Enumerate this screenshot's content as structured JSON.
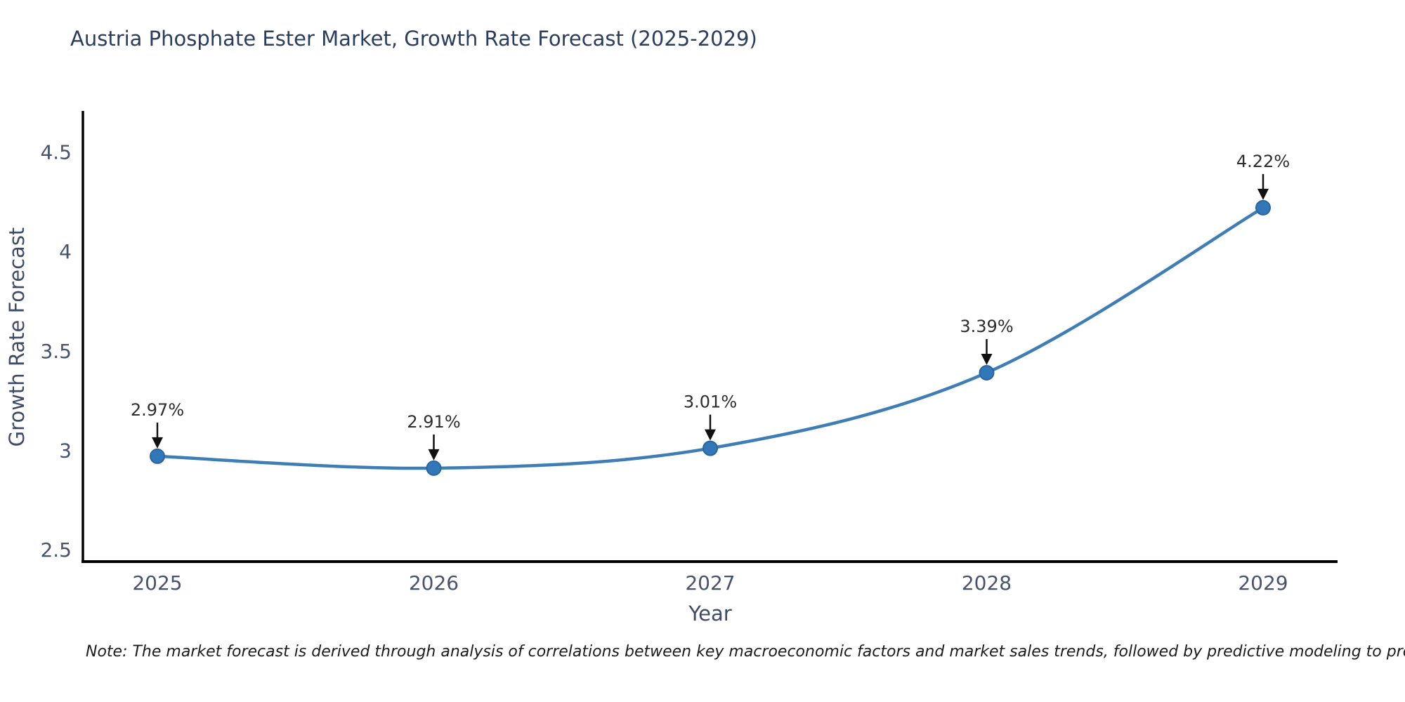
{
  "title": "Austria Phosphate Ester Market, Growth Rate Forecast (2025-2029)",
  "note": "Note: The market forecast is derived through analysis of correlations between key macroeconomic factors and market sales trends, followed by predictive modeling to project future sales",
  "chart_data": {
    "type": "line",
    "title": "Austria Phosphate Ester Market, Growth Rate Forecast (2025-2029)",
    "categories": [
      "2025",
      "2026",
      "2027",
      "2028",
      "2029"
    ],
    "values": [
      2.97,
      2.91,
      3.01,
      3.39,
      4.22
    ],
    "point_labels": [
      "2.97%",
      "2.91%",
      "3.01%",
      "3.39%",
      "4.22%"
    ],
    "xlabel": "Year",
    "ylabel": "Growth Rate Forecast",
    "yticks": [
      2.5,
      3,
      3.5,
      4,
      4.5
    ],
    "ylim": [
      2.44,
      4.7
    ],
    "grid": false,
    "legend": false,
    "smooth": true,
    "annotations_arrow": "down-arrow-to-point",
    "colors": {
      "line": "#3f7eb5",
      "marker_fill": "#3277b8",
      "marker_stroke": "#2a669e",
      "axis": "#000000",
      "annotation_text": "#2d2d2d",
      "annotation_arrow": "#111111",
      "title_text": "#2b3d5f",
      "tick_text": "#47536e"
    }
  }
}
